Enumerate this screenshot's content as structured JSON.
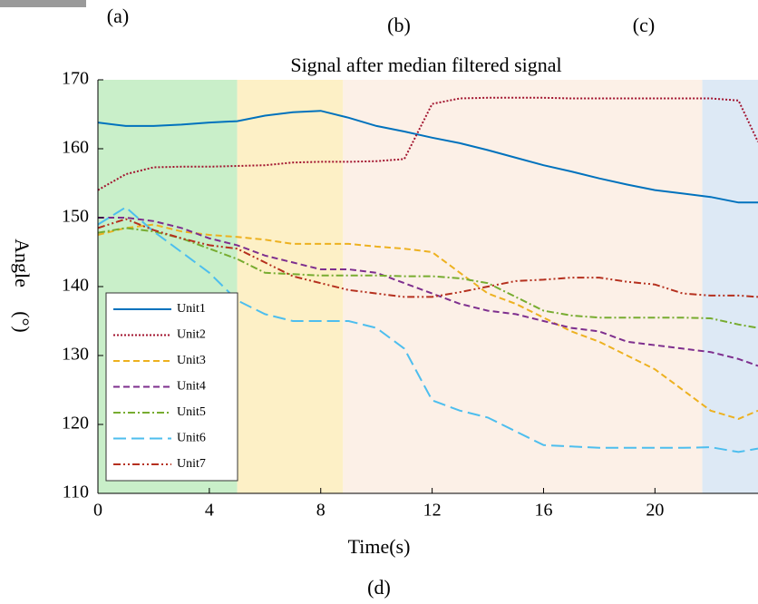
{
  "panel_labels": [
    "(a)",
    "(b)",
    "(c)",
    "(d)"
  ],
  "chart_data": {
    "type": "line",
    "title": "Signal after median filtered signal",
    "xlabel": "Time(s)",
    "ylabel": "Angle",
    "ylabel_unit": "(°)",
    "x": [
      0,
      1,
      2,
      3,
      4,
      5,
      6,
      7,
      8,
      9,
      10,
      11,
      12,
      13,
      14,
      15,
      16,
      17,
      18,
      19,
      20,
      21,
      22,
      23,
      23.7
    ],
    "xlim": [
      0,
      23.7
    ],
    "xticks": [
      0,
      4,
      8,
      12,
      16,
      20
    ],
    "ylim": [
      110,
      170
    ],
    "yticks": [
      110,
      120,
      130,
      140,
      150,
      160,
      170
    ],
    "regions": [
      {
        "start": 0,
        "end": 5,
        "color": "#c9efc9"
      },
      {
        "start": 5,
        "end": 8.8,
        "color": "#fdf0c6"
      },
      {
        "start": 8.8,
        "end": 21.7,
        "color": "#fcf0e7"
      },
      {
        "start": 21.7,
        "end": 23.7,
        "color": "#dde9f5"
      }
    ],
    "legend": "lower left",
    "series": [
      {
        "name": "Unit1",
        "color": "#0072bd",
        "linestyle": "solid",
        "values": [
          163.8,
          163.3,
          163.3,
          163.5,
          163.8,
          164,
          164.8,
          165.3,
          165.5,
          164.5,
          163.3,
          162.5,
          161.6,
          160.8,
          159.8,
          158.7,
          157.6,
          156.7,
          155.7,
          154.8,
          154,
          153.5,
          153,
          152.2,
          152.2
        ]
      },
      {
        "name": "Unit2",
        "color": "#a2142f",
        "linestyle": "dotted",
        "values": [
          154,
          156.3,
          157.3,
          157.4,
          157.4,
          157.5,
          157.6,
          158,
          158.1,
          158.1,
          158.2,
          158.5,
          166.5,
          167.3,
          167.4,
          167.4,
          167.4,
          167.3,
          167.3,
          167.3,
          167.3,
          167.3,
          167.3,
          167,
          161
        ]
      },
      {
        "name": "Unit3",
        "color": "#edb120",
        "linestyle": "dashed",
        "values": [
          147.5,
          148.5,
          149,
          148,
          147.5,
          147.2,
          146.8,
          146.2,
          146.2,
          146.2,
          145.8,
          145.5,
          145,
          142,
          139,
          137.5,
          135.5,
          133.5,
          132,
          130,
          128,
          125,
          122,
          120.8,
          122
        ]
      },
      {
        "name": "Unit4",
        "color": "#7e2f8e",
        "linestyle": "dashed",
        "values": [
          150,
          150,
          149.5,
          148.5,
          147,
          146,
          144.5,
          143.5,
          142.5,
          142.5,
          142,
          140.5,
          139,
          137.5,
          136.5,
          136,
          135,
          134,
          133.5,
          132,
          131.5,
          131,
          130.5,
          129.5,
          128.5
        ]
      },
      {
        "name": "Unit5",
        "color": "#77ac30",
        "linestyle": "dashdot",
        "values": [
          147.8,
          148.5,
          148,
          147,
          145.5,
          144,
          142,
          141.8,
          141.6,
          141.6,
          141.6,
          141.5,
          141.5,
          141.2,
          140.5,
          138.5,
          136.5,
          135.8,
          135.5,
          135.5,
          135.5,
          135.5,
          135.4,
          134.5,
          134
        ]
      },
      {
        "name": "Unit6",
        "color": "#4dbeee",
        "linestyle": "longdash",
        "values": [
          149,
          151.5,
          148,
          145,
          142,
          138,
          136,
          135,
          135,
          135,
          134,
          131,
          123.5,
          122,
          121,
          119,
          117,
          116.8,
          116.6,
          116.6,
          116.6,
          116.6,
          116.7,
          116,
          116.5
        ]
      },
      {
        "name": "Unit7",
        "color": "#b5301e",
        "linestyle": "dashdotdot",
        "values": [
          148.5,
          149.8,
          148.2,
          147,
          146,
          145.5,
          143.5,
          141.5,
          140.5,
          139.5,
          139,
          138.5,
          138.5,
          139.2,
          140,
          140.8,
          141,
          141.3,
          141.3,
          140.7,
          140.3,
          139,
          138.7,
          138.7,
          138.5
        ]
      }
    ]
  }
}
